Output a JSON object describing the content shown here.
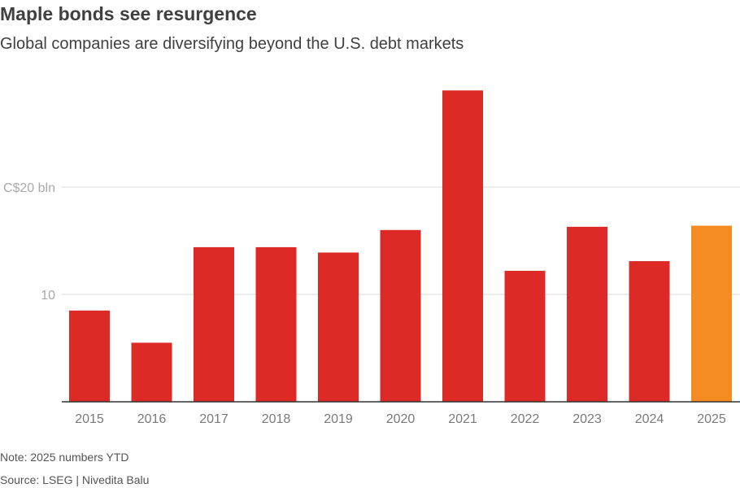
{
  "title": "Maple bonds see resurgence",
  "subtitle": "Global companies are diversifying beyond the U.S. debt markets",
  "note": "Note: 2025 numbers YTD",
  "source": "Source: LSEG  | Nivedita Balu",
  "colors": {
    "bar": "#dd2a27",
    "highlight": "#f58b23",
    "grid": "#d9d9d9",
    "axis": "#333333",
    "tick_label": "#7a7a7a",
    "y_label": "#aaaaaa"
  },
  "chart_data": {
    "type": "bar",
    "categories": [
      "2015",
      "2016",
      "2017",
      "2018",
      "2019",
      "2020",
      "2021",
      "2022",
      "2023",
      "2024",
      "2025"
    ],
    "values": [
      8.5,
      5.5,
      14.4,
      14.4,
      13.9,
      16.0,
      29.0,
      12.2,
      16.3,
      13.1,
      16.4
    ],
    "highlight_category": "2025",
    "ylim": [
      0,
      30
    ],
    "yticks": [
      {
        "value": 10,
        "label": "10"
      },
      {
        "value": 20,
        "label": "C$20 bln"
      }
    ],
    "grid": true,
    "xlabel": "",
    "ylabel": ""
  }
}
